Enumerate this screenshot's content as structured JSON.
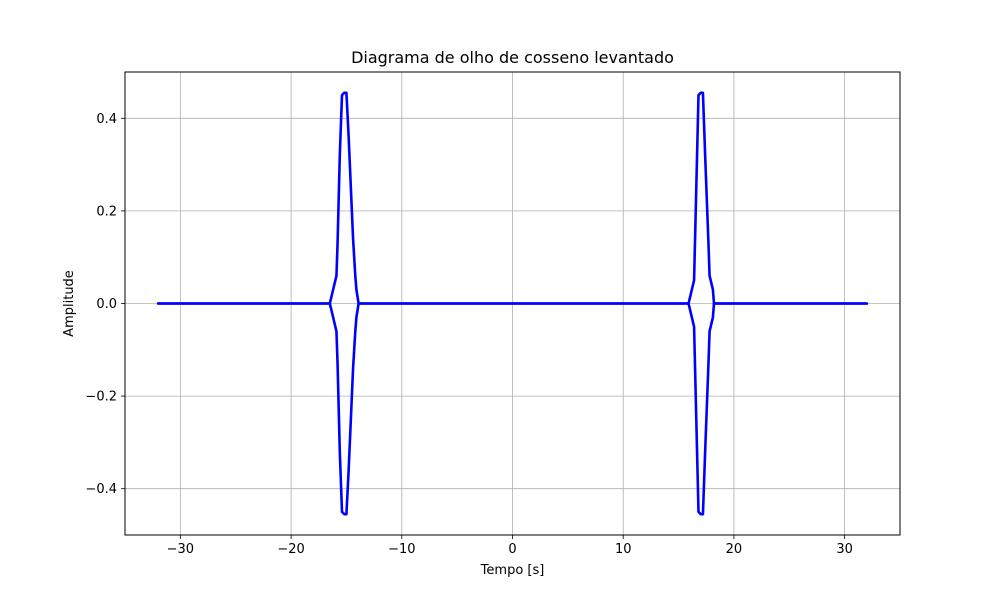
{
  "chart_data": {
    "type": "line",
    "title": "Diagrama de olho de cosseno levantado",
    "xlabel": "Tempo [s]",
    "ylabel": "Amplitude",
    "xlim": [
      -35,
      35
    ],
    "ylim": [
      -0.5,
      0.5
    ],
    "x_ticks": [
      -30,
      -20,
      -10,
      0,
      10,
      20,
      30
    ],
    "x_tick_labels": [
      "−30",
      "−20",
      "−10",
      "0",
      "10",
      "20",
      "30"
    ],
    "y_ticks": [
      -0.4,
      -0.2,
      0.0,
      0.2,
      0.4
    ],
    "y_tick_labels": [
      "−0.4",
      "−0.2",
      "0.0",
      "0.2",
      "0.4"
    ],
    "grid": true,
    "line_color": "#0000ff",
    "series": [
      {
        "x": [
          -32,
          -16.5,
          -15.9,
          -15.8,
          -15.6,
          -15.4,
          -15.2,
          -15.0,
          -14.8,
          -14.6,
          -14.4,
          -14.2,
          -14.1,
          -13.9,
          15.9,
          16.4,
          16.5,
          16.8,
          17.0,
          17.2,
          17.4,
          17.7,
          17.8,
          18.1,
          18.2,
          32
        ],
        "y": [
          0,
          0,
          0.06,
          0.13,
          0.32,
          0.45,
          0.455,
          0.455,
          0.36,
          0.25,
          0.14,
          0.06,
          0.03,
          0,
          0,
          0.05,
          0.15,
          0.45,
          0.455,
          0.455,
          0.32,
          0.13,
          0.06,
          0.03,
          0,
          0
        ]
      },
      {
        "x": [
          -32,
          -16.5,
          -15.9,
          -15.8,
          -15.6,
          -15.4,
          -15.2,
          -15.0,
          -14.8,
          -14.6,
          -14.4,
          -14.2,
          -14.1,
          -13.9,
          15.9,
          16.4,
          16.5,
          16.8,
          17.0,
          17.2,
          17.4,
          17.7,
          17.8,
          18.1,
          18.2,
          32
        ],
        "y": [
          0,
          0,
          -0.06,
          -0.13,
          -0.32,
          -0.45,
          -0.455,
          -0.455,
          -0.36,
          -0.25,
          -0.14,
          -0.06,
          -0.03,
          0,
          0,
          -0.05,
          -0.15,
          -0.45,
          -0.455,
          -0.455,
          -0.32,
          -0.13,
          -0.06,
          -0.03,
          0,
          0
        ]
      }
    ]
  }
}
